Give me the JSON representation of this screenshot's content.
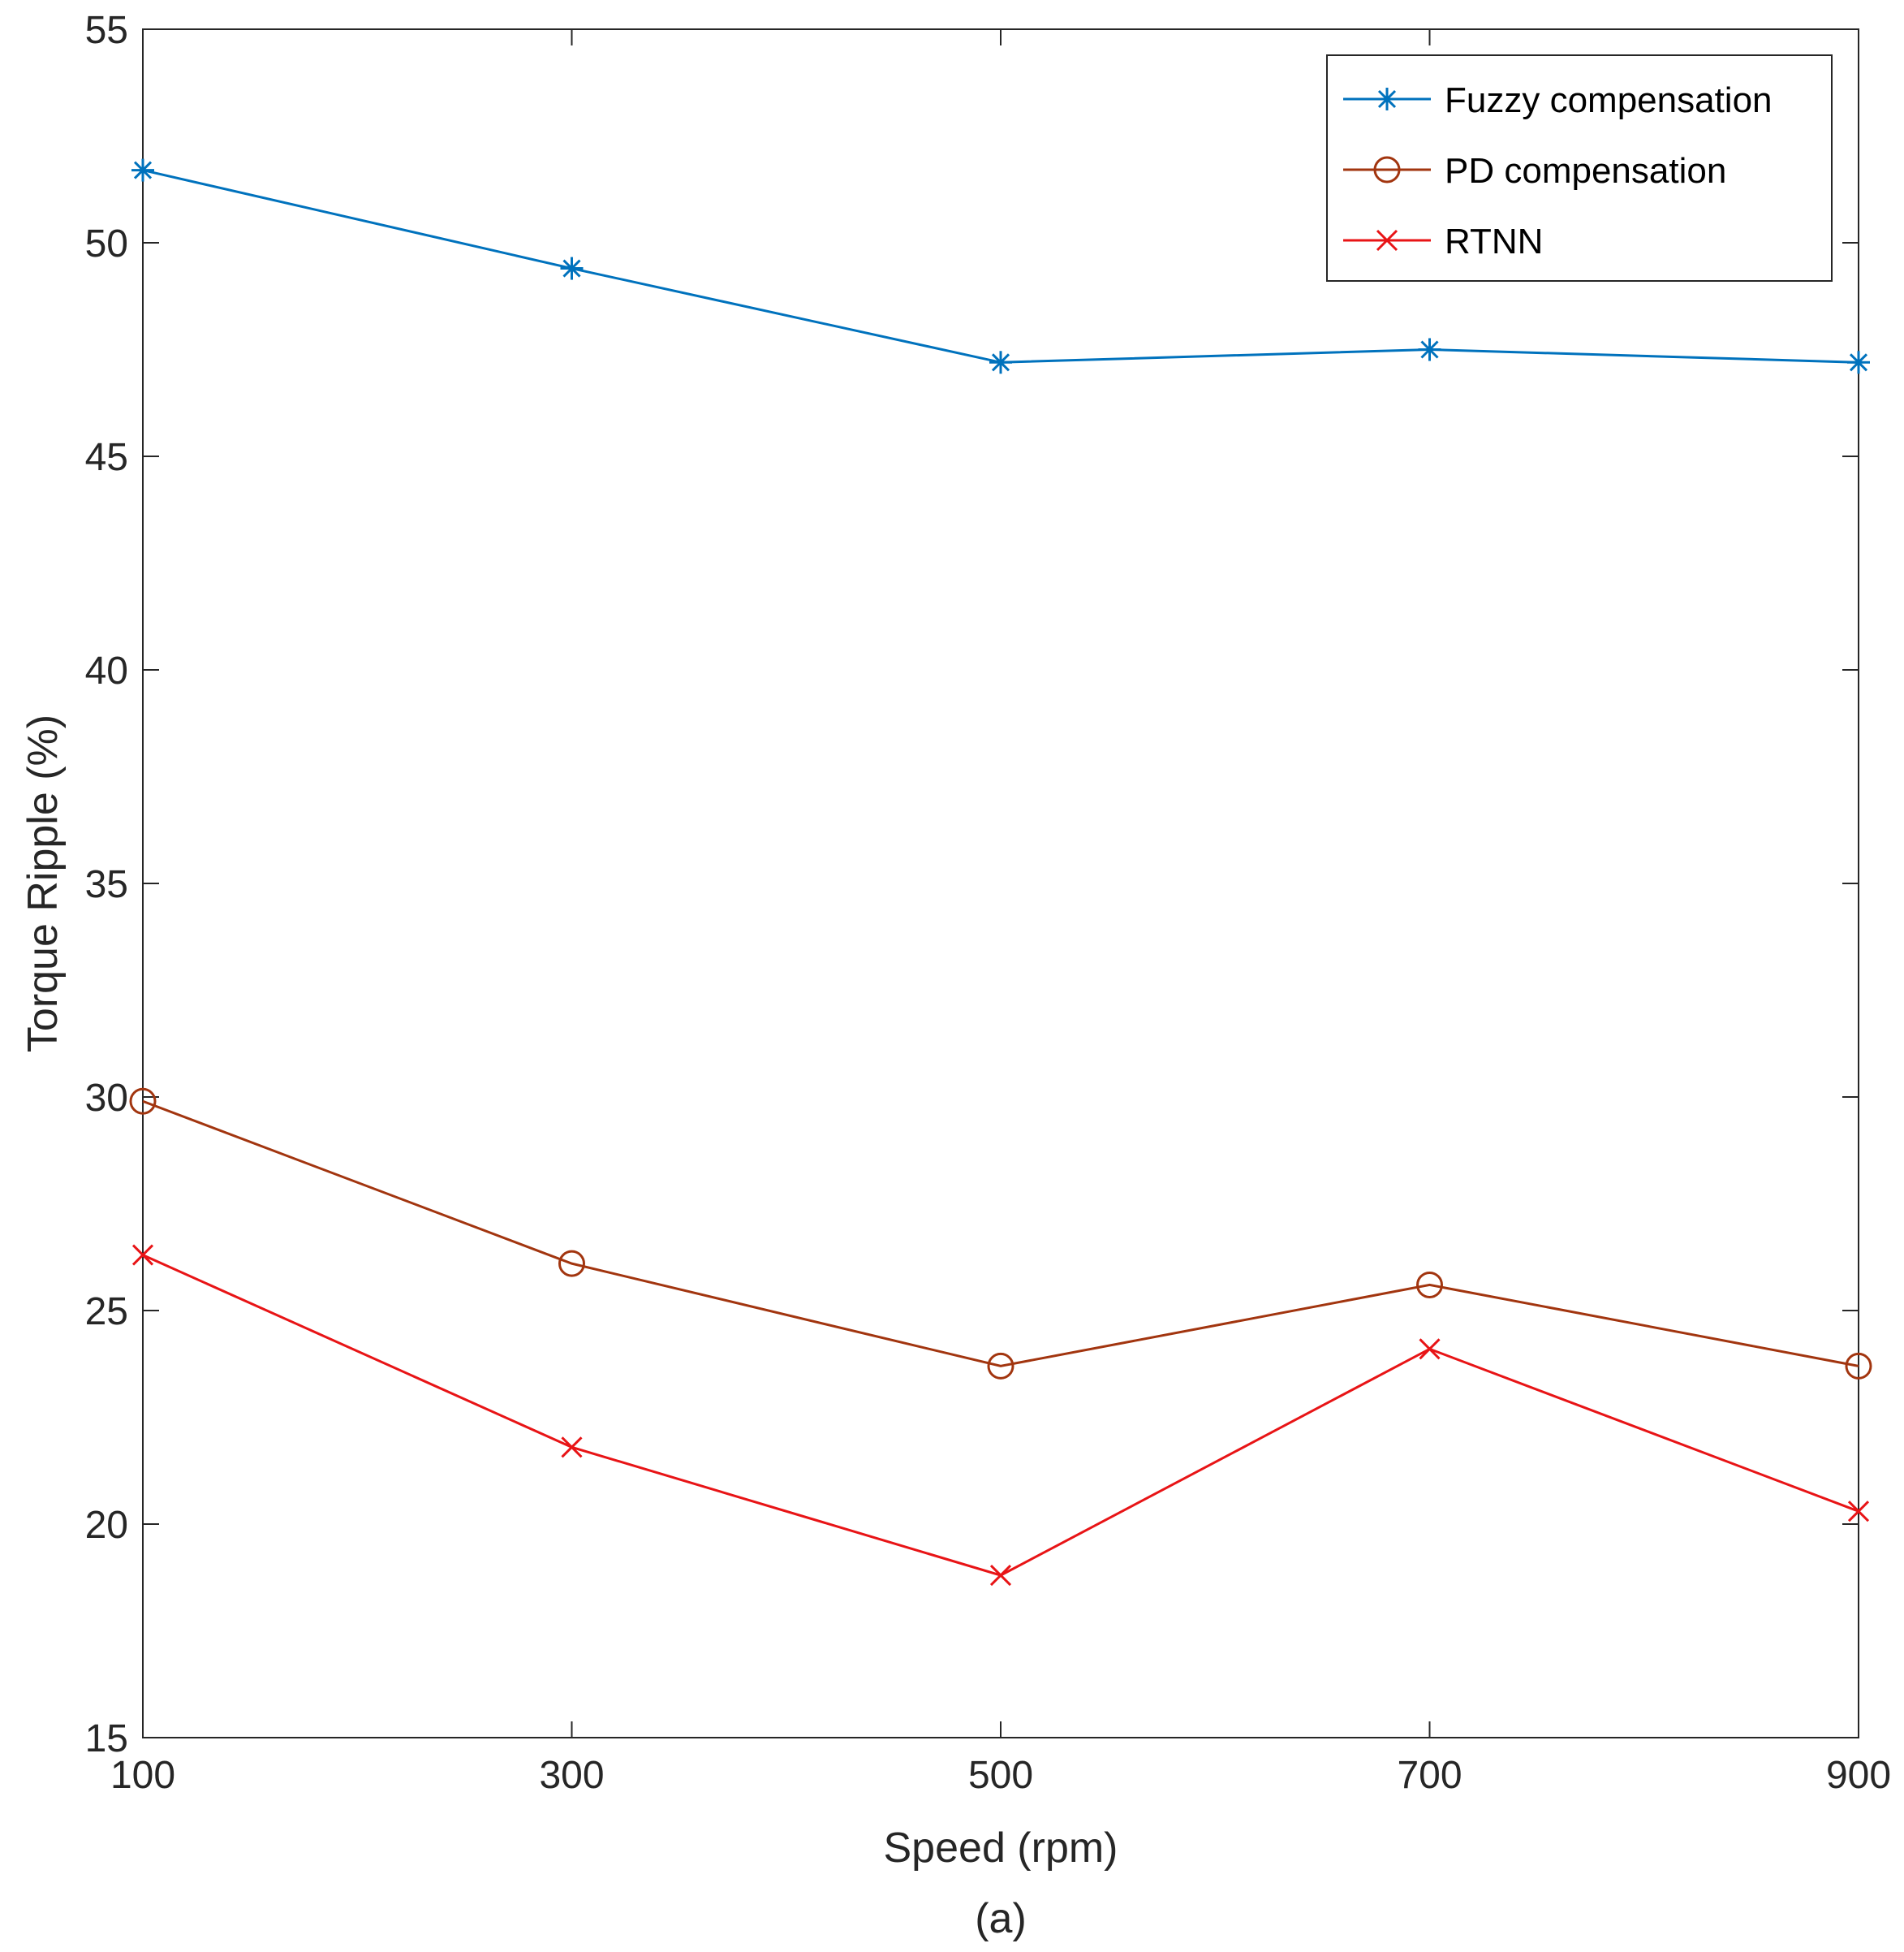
{
  "chart_data": {
    "type": "line",
    "title": "",
    "caption": "(a)",
    "xlabel": "Speed (rpm)",
    "ylabel": "Torque Ripple (%)",
    "x": [
      100,
      300,
      500,
      700,
      900
    ],
    "xlim": [
      100,
      900
    ],
    "ylim": [
      15,
      55
    ],
    "xticks": [
      "100",
      "300",
      "500",
      "700",
      "900"
    ],
    "yticks": [
      "15",
      "20",
      "25",
      "30",
      "35",
      "40",
      "45",
      "50",
      "55"
    ],
    "grid": false,
    "legend_position": "top-right",
    "series": [
      {
        "name": "Fuzzy compensation",
        "color": "#0072BD",
        "marker": "asterisk",
        "values": [
          51.7,
          49.4,
          47.2,
          47.5,
          47.2
        ]
      },
      {
        "name": "PD compensation",
        "color": "#A2350F",
        "marker": "circle",
        "values": [
          29.9,
          26.1,
          23.7,
          25.6,
          23.7
        ]
      },
      {
        "name": "RTNN",
        "color": "#E81416",
        "marker": "x",
        "values": [
          26.3,
          21.8,
          18.8,
          24.1,
          20.3
        ]
      }
    ]
  }
}
